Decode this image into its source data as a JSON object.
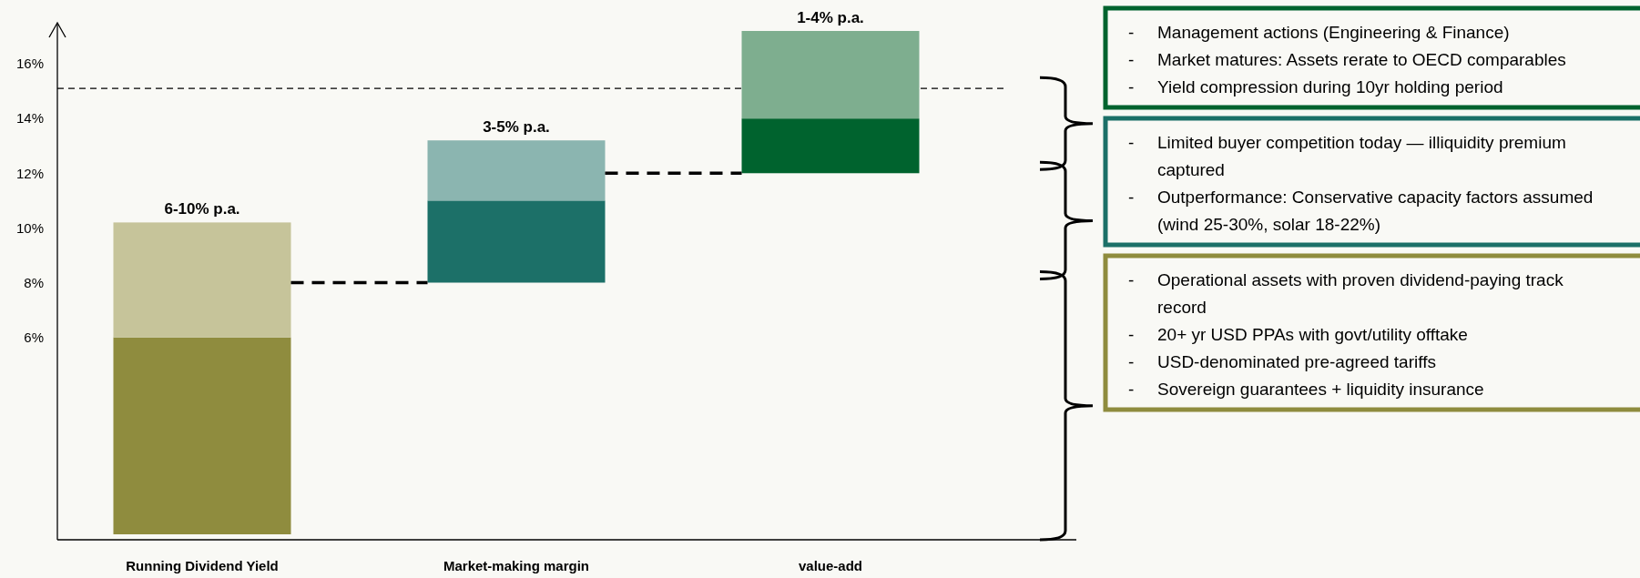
{
  "chart_data": {
    "type": "bar",
    "categories": [
      "Running Dividend Yield",
      "Market-making margin",
      "value-add"
    ],
    "series": [
      {
        "colors": [
          "#8f8c3e",
          "#1c7068",
          "#00632e"
        ],
        "base": [
          -1.2,
          8,
          12
        ],
        "values": [
          7.2,
          3,
          2
        ]
      },
      {
        "colors": [
          "#c6c49a",
          "#8bb5b0",
          "#7eae8f"
        ],
        "base": [
          6,
          11,
          14
        ],
        "values": [
          4.2,
          2.2,
          3.2
        ]
      }
    ],
    "ylim": [
      -1.4,
      17.5
    ],
    "yticks": [
      {
        "value": 6,
        "label": "6%"
      },
      {
        "value": 8,
        "label": "8%"
      },
      {
        "value": 10,
        "label": "10%"
      },
      {
        "value": 12,
        "label": "12%"
      },
      {
        "value": 14,
        "label": "14%"
      },
      {
        "value": 16,
        "label": "16%"
      }
    ],
    "ref_lines": [
      {
        "axis": "y",
        "value": 15.1,
        "color": "#000000",
        "line_style": "dashed"
      }
    ],
    "annotations": [
      "6-10% p.a.",
      "3-5% p.a.",
      "1-4% p.a.",
      "- Management actions (Engineering & Finance)\n- Market matures: Assets rerate to OECD comparables\n- Yield compression during 10yr holding period",
      "- Limited buyer competition today — illiquidity premium captured\n- Outperformance: Conservative capacity factors assumed (wind 25-30%, solar 18-22%)",
      "- Operational assets with proven dividend-paying track record\n- 20+ yr USD PPAs with govt/utility offtake\n- USD-denominated pre-agreed tariffs\n- Sovereign guarantees + liquidity insurance"
    ]
  }
}
